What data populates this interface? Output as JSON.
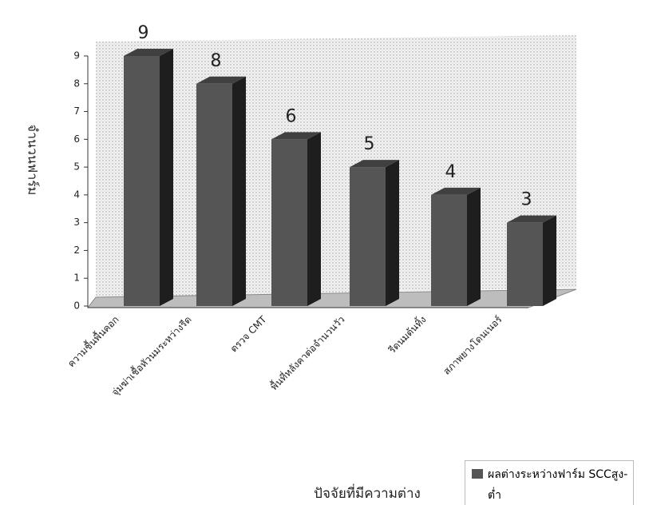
{
  "chart_data": {
    "type": "bar3d",
    "y_label": "จำนวนฟาร์ม",
    "x_label": "ปัจจัยที่มีความต่าง",
    "categories": [
      "ความชื้นพื้นคอก",
      "จุ่มฆ่าเชื้อหัวนมระหว่างรีด",
      "ตรวจ CMT",
      "พื้นที่หลังคาต่อจำนวนวัว",
      "รีดนมต้นทิ้ง",
      "สภาพยางโดนเนอร์"
    ],
    "series": [
      {
        "name": "ผลต่างระหว่างฟาร์ม SCCสูง-ต่ำ",
        "color": "#555555",
        "values": [
          9,
          8,
          6,
          5,
          4,
          3
        ]
      }
    ],
    "ylim": [
      0,
      9
    ],
    "yticks": [
      0,
      1,
      2,
      3,
      4,
      5,
      6,
      7,
      8,
      9
    ]
  }
}
